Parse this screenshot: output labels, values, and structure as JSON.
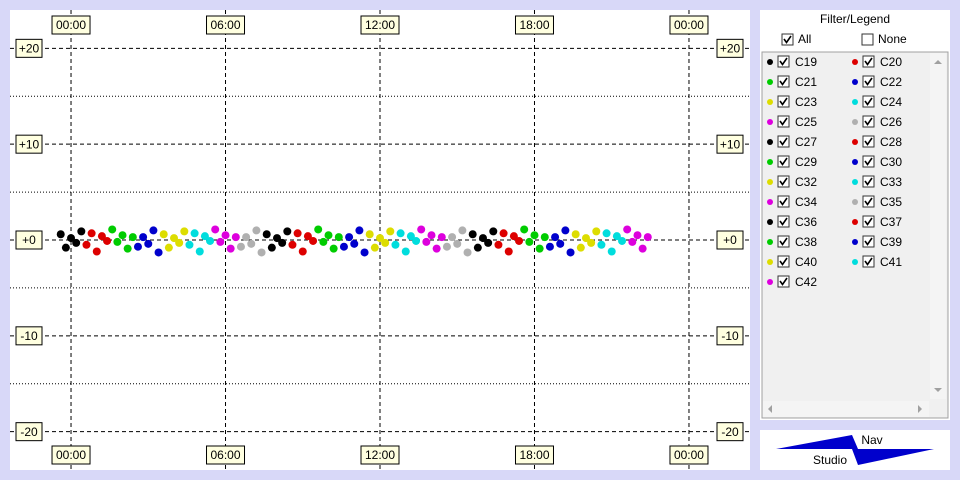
{
  "chart_data": {
    "type": "scatter",
    "xlim": [
      -2.37,
      26.37
    ],
    "ylim": [
      -24,
      24
    ],
    "xticks": [
      {
        "value": 0,
        "label": "00:00"
      },
      {
        "value": 6,
        "label": "06:00"
      },
      {
        "value": 12,
        "label": "12:00"
      },
      {
        "value": 18,
        "label": "18:00"
      },
      {
        "value": 24,
        "label": "00:00"
      }
    ],
    "yticks": [
      {
        "value": 20,
        "label": "+20"
      },
      {
        "value": 10,
        "label": "+10"
      },
      {
        "value": 0,
        "label": "+0"
      },
      -10,
      -20
    ],
    "minor_yticks": [
      15,
      5,
      -5,
      -15
    ],
    "grid": true,
    "series": [
      {
        "name": "C19",
        "color": "#000000",
        "x": [
          -0.4,
          -0.2,
          0,
          0.2,
          0.4
        ],
        "y": [
          0.6,
          -0.8,
          0.2,
          -0.3,
          0.9
        ]
      },
      {
        "name": "C20",
        "color": "#dd0000",
        "x": [
          0.6,
          0.8,
          1,
          1.2,
          1.4
        ],
        "y": [
          -0.5,
          0.7,
          -1.2,
          0.4,
          -0.1
        ]
      },
      {
        "name": "C21",
        "color": "#00cc00",
        "x": [
          1.6,
          1.8,
          2,
          2.2,
          2.4
        ],
        "y": [
          1.1,
          -0.2,
          0.5,
          -0.9,
          0.3
        ]
      },
      {
        "name": "C22",
        "color": "#0000cc",
        "x": [
          2.6,
          2.8,
          3,
          3.2,
          3.4
        ],
        "y": [
          -0.7,
          0.3,
          -0.4,
          1.0,
          -1.3
        ]
      },
      {
        "name": "C23",
        "color": "#dddd00",
        "x": [
          3.6,
          3.8,
          4,
          4.2,
          4.4
        ],
        "y": [
          0.6,
          -0.8,
          0.2,
          -0.3,
          0.9
        ]
      },
      {
        "name": "C24",
        "color": "#00dddd",
        "x": [
          4.6,
          4.8,
          5,
          5.2,
          5.4
        ],
        "y": [
          -0.5,
          0.7,
          -1.2,
          0.4,
          -0.1
        ]
      },
      {
        "name": "C25",
        "color": "#dd00dd",
        "x": [
          5.6,
          5.8,
          6,
          6.2,
          6.4
        ],
        "y": [
          1.1,
          -0.2,
          0.5,
          -0.9,
          0.3
        ]
      },
      {
        "name": "C26",
        "color": "#b0b0b0",
        "x": [
          6.6,
          6.8,
          7,
          7.2,
          7.4
        ],
        "y": [
          -0.7,
          0.3,
          -0.4,
          1.0,
          -1.3
        ]
      },
      {
        "name": "C27",
        "color": "#000000",
        "x": [
          7.6,
          7.8,
          8,
          8.2,
          8.4
        ],
        "y": [
          0.6,
          -0.8,
          0.2,
          -0.3,
          0.9
        ]
      },
      {
        "name": "C28",
        "color": "#dd0000",
        "x": [
          8.6,
          8.8,
          9,
          9.2,
          9.4
        ],
        "y": [
          -0.5,
          0.7,
          -1.2,
          0.4,
          -0.1
        ]
      },
      {
        "name": "C29",
        "color": "#00cc00",
        "x": [
          9.6,
          9.8,
          10,
          10.2,
          10.4
        ],
        "y": [
          1.1,
          -0.2,
          0.5,
          -0.9,
          0.3
        ]
      },
      {
        "name": "C30",
        "color": "#0000cc",
        "x": [
          10.6,
          10.8,
          11,
          11.2,
          11.4
        ],
        "y": [
          -0.7,
          0.3,
          -0.4,
          1.0,
          -1.3
        ]
      },
      {
        "name": "C32",
        "color": "#dddd00",
        "x": [
          11.6,
          11.8,
          12,
          12.2,
          12.4
        ],
        "y": [
          0.6,
          -0.8,
          0.2,
          -0.3,
          0.9
        ]
      },
      {
        "name": "C33",
        "color": "#00dddd",
        "x": [
          12.6,
          12.8,
          13,
          13.2,
          13.4
        ],
        "y": [
          -0.5,
          0.7,
          -1.2,
          0.4,
          -0.1
        ]
      },
      {
        "name": "C34",
        "color": "#dd00dd",
        "x": [
          13.6,
          13.8,
          14,
          14.2,
          14.4
        ],
        "y": [
          1.1,
          -0.2,
          0.5,
          -0.9,
          0.3
        ]
      },
      {
        "name": "C35",
        "color": "#b0b0b0",
        "x": [
          14.6,
          14.8,
          15,
          15.2,
          15.4
        ],
        "y": [
          -0.7,
          0.3,
          -0.4,
          1.0,
          -1.3
        ]
      },
      {
        "name": "C36",
        "color": "#000000",
        "x": [
          15.6,
          15.8,
          16,
          16.2,
          16.4
        ],
        "y": [
          0.6,
          -0.8,
          0.2,
          -0.3,
          0.9
        ]
      },
      {
        "name": "C37",
        "color": "#dd0000",
        "x": [
          16.6,
          16.8,
          17,
          17.2,
          17.4
        ],
        "y": [
          -0.5,
          0.7,
          -1.2,
          0.4,
          -0.1
        ]
      },
      {
        "name": "C38",
        "color": "#00cc00",
        "x": [
          17.6,
          17.8,
          18,
          18.2,
          18.4
        ],
        "y": [
          1.1,
          -0.2,
          0.5,
          -0.9,
          0.3
        ]
      },
      {
        "name": "C39",
        "color": "#0000cc",
        "x": [
          18.6,
          18.8,
          19,
          19.2,
          19.4
        ],
        "y": [
          -0.7,
          0.3,
          -0.4,
          1.0,
          -1.3
        ]
      },
      {
        "name": "C40",
        "color": "#dddd00",
        "x": [
          19.6,
          19.8,
          20,
          20.2,
          20.4
        ],
        "y": [
          0.6,
          -0.8,
          0.2,
          -0.3,
          0.9
        ]
      },
      {
        "name": "C41",
        "color": "#00dddd",
        "x": [
          20.6,
          20.8,
          21,
          21.2,
          21.4
        ],
        "y": [
          -0.5,
          0.7,
          -1.2,
          0.4,
          -0.1
        ]
      },
      {
        "name": "C42",
        "color": "#dd00dd",
        "x": [
          21.6,
          21.8,
          22,
          22.2,
          22.4
        ],
        "y": [
          1.1,
          -0.2,
          0.5,
          -0.9,
          0.3
        ]
      }
    ]
  },
  "legend_panel": {
    "title": "Filter/Legend",
    "all": "All",
    "all_checked": true,
    "none": "None",
    "none_checked": false
  },
  "logo": {
    "line1": "Nav",
    "line2": "Studio"
  }
}
